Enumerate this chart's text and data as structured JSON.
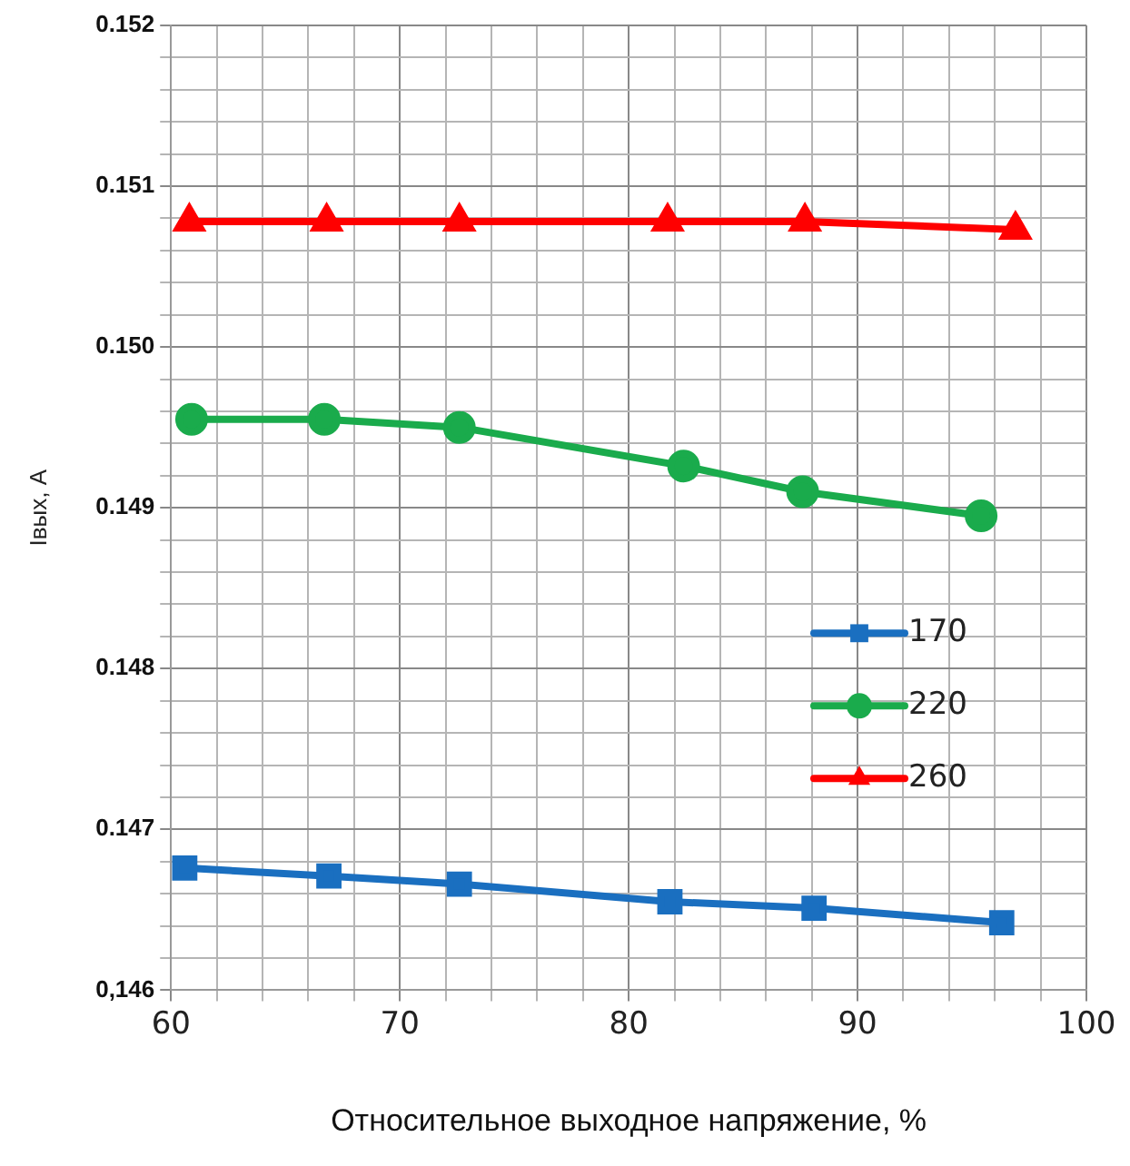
{
  "chart_data": {
    "type": "line",
    "xlabel": "Относительное выходное напряжение, %",
    "ylabel": "Iвых, А",
    "xlim": [
      60,
      100
    ],
    "xticks": [
      60,
      {
        "value": 62,
        "label": null
      },
      {
        "value": 64,
        "label": null
      },
      {
        "value": 66,
        "label": null
      },
      {
        "value": 68,
        "label": null
      },
      70,
      {
        "value": 72,
        "label": null
      },
      {
        "value": 74,
        "label": null
      },
      {
        "value": 76,
        "label": null
      },
      {
        "value": 78,
        "label": null
      },
      80,
      {
        "value": 82,
        "label": null
      },
      {
        "value": 84,
        "label": null
      },
      {
        "value": 86,
        "label": null
      },
      {
        "value": 88,
        "label": null
      },
      90,
      {
        "value": 92,
        "label": null
      },
      {
        "value": 94,
        "label": null
      },
      {
        "value": 96,
        "label": null
      },
      {
        "value": 98,
        "label": null
      },
      100
    ],
    "ylim": [
      0.146,
      0.152
    ],
    "yticks": [
      {
        "value": 0.146,
        "label": "0,146"
      },
      {
        "value": 0.1462,
        "label": null
      },
      {
        "value": 0.1464,
        "label": null
      },
      {
        "value": 0.1466,
        "label": null
      },
      {
        "value": 0.1468,
        "label": null
      },
      {
        "value": 0.147,
        "label": "0.147"
      },
      {
        "value": 0.1472,
        "label": null
      },
      {
        "value": 0.1474,
        "label": null
      },
      {
        "value": 0.1476,
        "label": null
      },
      {
        "value": 0.1478,
        "label": null
      },
      {
        "value": 0.148,
        "label": "0.148"
      },
      {
        "value": 0.1482,
        "label": null
      },
      {
        "value": 0.1484,
        "label": null
      },
      {
        "value": 0.1486,
        "label": null
      },
      {
        "value": 0.1488,
        "label": null
      },
      {
        "value": 0.149,
        "label": "0.149"
      },
      {
        "value": 0.1492,
        "label": null
      },
      {
        "value": 0.1494,
        "label": null
      },
      {
        "value": 0.1496,
        "label": null
      },
      {
        "value": 0.1498,
        "label": null
      },
      {
        "value": 0.15,
        "label": "0.150"
      },
      {
        "value": 0.1502,
        "label": null
      },
      {
        "value": 0.1504,
        "label": null
      },
      {
        "value": 0.1506,
        "label": null
      },
      {
        "value": 0.1508,
        "label": null
      },
      {
        "value": 0.151,
        "label": "0.151"
      },
      {
        "value": 0.1512,
        "label": null
      },
      {
        "value": 0.1514,
        "label": null
      },
      {
        "value": 0.1516,
        "label": null
      },
      {
        "value": 0.1518,
        "label": null
      },
      {
        "value": 0.152,
        "label": "0.152"
      }
    ],
    "grid": true,
    "legend": "right",
    "series": [
      {
        "name": "170",
        "color": "#1a6fc0",
        "marker": "square",
        "x": [
          60.6,
          66.9,
          72.6,
          81.8,
          88.1,
          96.3
        ],
        "values": [
          0.14676,
          0.14671,
          0.14666,
          0.14655,
          0.14651,
          0.14642
        ]
      },
      {
        "name": "220",
        "color": "#1aab4c",
        "marker": "circle",
        "x": [
          60.9,
          66.7,
          72.6,
          82.4,
          87.6,
          95.4
        ],
        "values": [
          0.14955,
          0.14955,
          0.1495,
          0.14926,
          0.1491,
          0.14895
        ]
      },
      {
        "name": "260",
        "color": "#ff0000",
        "marker": "triangle",
        "x": [
          60.8,
          66.8,
          72.6,
          81.7,
          87.7,
          96.9
        ],
        "values": [
          0.15078,
          0.15078,
          0.15078,
          0.15078,
          0.15078,
          0.15073
        ]
      }
    ]
  }
}
